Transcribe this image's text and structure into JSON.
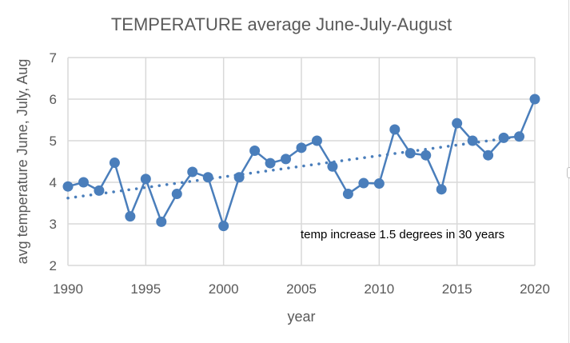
{
  "chart_data": {
    "type": "line",
    "title": "TEMPERATURE average June-July-August",
    "xlabel": "year",
    "ylabel": "avg temperature June, July, Aug",
    "xlim": [
      1990,
      2020
    ],
    "ylim": [
      2,
      7
    ],
    "x_ticks": [
      1990,
      1995,
      2000,
      2005,
      2010,
      2015,
      2020
    ],
    "y_ticks": [
      2,
      3,
      4,
      5,
      6,
      7
    ],
    "grid": true,
    "legend": "none",
    "colors": {
      "series": "#4a7ebb",
      "grid": "#d9d9d9",
      "text": "#595959"
    },
    "series": [
      {
        "name": "avg temperature",
        "x": [
          1990,
          1991,
          1992,
          1993,
          1994,
          1995,
          1996,
          1997,
          1998,
          1999,
          2000,
          2001,
          2002,
          2003,
          2004,
          2005,
          2006,
          2007,
          2008,
          2009,
          2010,
          2011,
          2012,
          2013,
          2014,
          2015,
          2016,
          2017,
          2018,
          2019,
          2020
        ],
        "values": [
          3.9,
          4.0,
          3.8,
          4.47,
          3.18,
          4.08,
          3.05,
          3.72,
          4.25,
          4.12,
          2.95,
          4.12,
          4.76,
          4.46,
          4.56,
          4.83,
          5.0,
          4.38,
          3.72,
          3.98,
          3.97,
          5.27,
          4.7,
          4.65,
          3.83,
          5.42,
          5.0,
          4.65,
          5.07,
          5.1,
          6.0
        ]
      }
    ],
    "trendline": {
      "type": "linear",
      "style": "dotted",
      "x": [
        1990,
        2019
      ],
      "values": [
        3.62,
        5.1
      ]
    },
    "annotations": [
      {
        "text": "temp increase 1.5 degrees in 30 years",
        "x": 2011.5,
        "y": 2.65
      }
    ]
  }
}
